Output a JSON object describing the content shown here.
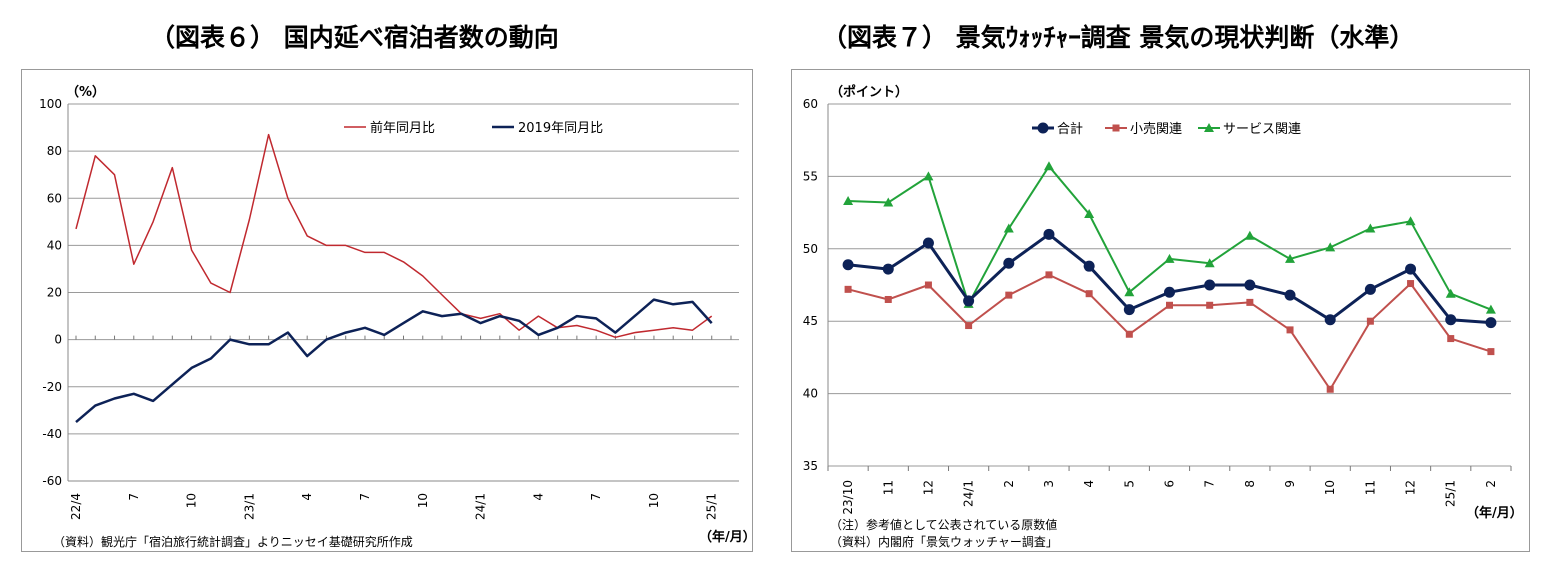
{
  "titles": {
    "left": "（図表６） 国内延べ宿泊者数の動向",
    "right": "（図表７） 景気ｳｫｯﾁｬｰ調査  景気の現状判断（水準）"
  },
  "notes": {
    "left_source": "（資料）観光庁「宿泊旅行統計調査」よりニッセイ基礎研究所作成",
    "right_note": "（注）参考値として公表されている原数値",
    "right_source": "（資料）内閣府「景気ウォッチャー調査」"
  },
  "colors": {
    "red": "#c0292f",
    "navy": "#0d2257",
    "green": "#22a33a",
    "salmon": "#c0504d"
  },
  "chart_data": [
    {
      "type": "line",
      "ylabel": "（%）",
      "xlabel": "（年/月）",
      "ylim": [
        -60,
        100
      ],
      "yticks": [
        100,
        80,
        60,
        40,
        20,
        0,
        -20,
        -40,
        -60
      ],
      "grid": true,
      "legend": "top-right",
      "x_count": 35,
      "x_ticks": [
        {
          "index": 0,
          "label": "22/4"
        },
        {
          "index": 3,
          "label": "7"
        },
        {
          "index": 6,
          "label": "10"
        },
        {
          "index": 9,
          "label": "23/1"
        },
        {
          "index": 12,
          "label": "4"
        },
        {
          "index": 15,
          "label": "7"
        },
        {
          "index": 18,
          "label": "10"
        },
        {
          "index": 21,
          "label": "24/1"
        },
        {
          "index": 24,
          "label": "4"
        },
        {
          "index": 27,
          "label": "7"
        },
        {
          "index": 30,
          "label": "10"
        },
        {
          "index": 33,
          "label": "25/1"
        }
      ],
      "series": [
        {
          "name": "前年同月比",
          "color": "#c0292f",
          "values": [
            47,
            78,
            70,
            32,
            50,
            73,
            38,
            24,
            20,
            51,
            87,
            60,
            44,
            40,
            40,
            37,
            37,
            33,
            27,
            19,
            11,
            9,
            11,
            4,
            10,
            5,
            6,
            4,
            1,
            3,
            4,
            5,
            4,
            10
          ]
        },
        {
          "name": "2019年同月比",
          "color": "#0d2257",
          "values": [
            -35,
            -28,
            -25,
            -23,
            -26,
            -19,
            -12,
            -8,
            0,
            -2,
            -2,
            3,
            -7,
            0,
            3,
            5,
            2,
            7,
            12,
            10,
            11,
            7,
            10,
            8,
            2,
            5,
            10,
            9,
            3,
            10,
            17,
            15,
            16,
            7
          ]
        }
      ]
    },
    {
      "type": "line",
      "ylabel": "（ポイント）",
      "xlabel": "（年/月）",
      "ylim": [
        35,
        60
      ],
      "yticks": [
        60,
        55,
        50,
        45,
        40,
        35
      ],
      "grid": true,
      "legend": "top-center",
      "categories": [
        "23/10",
        "11",
        "12",
        "24/1",
        "2",
        "3",
        "4",
        "5",
        "6",
        "7",
        "8",
        "9",
        "10",
        "11",
        "12",
        "25/1",
        "2"
      ],
      "series": [
        {
          "name": "合計",
          "color": "#0d2257",
          "marker": "circle",
          "values": [
            48.9,
            48.6,
            50.4,
            46.4,
            49.0,
            51.0,
            48.8,
            45.8,
            47.0,
            47.5,
            47.5,
            46.8,
            45.1,
            47.2,
            48.6,
            45.1,
            44.9
          ]
        },
        {
          "name": "小売関連",
          "color": "#c0504d",
          "marker": "square",
          "values": [
            47.2,
            46.5,
            47.5,
            44.7,
            46.8,
            48.2,
            46.9,
            44.1,
            46.1,
            46.1,
            46.3,
            44.4,
            40.3,
            45.0,
            47.6,
            43.8,
            42.9
          ]
        },
        {
          "name": "サービス関連",
          "color": "#22a33a",
          "marker": "triangle",
          "values": [
            53.3,
            53.2,
            55.0,
            46.2,
            51.4,
            55.7,
            52.4,
            47.0,
            49.3,
            49.0,
            50.9,
            49.3,
            50.1,
            51.4,
            51.9,
            46.9,
            45.8
          ]
        }
      ]
    }
  ]
}
